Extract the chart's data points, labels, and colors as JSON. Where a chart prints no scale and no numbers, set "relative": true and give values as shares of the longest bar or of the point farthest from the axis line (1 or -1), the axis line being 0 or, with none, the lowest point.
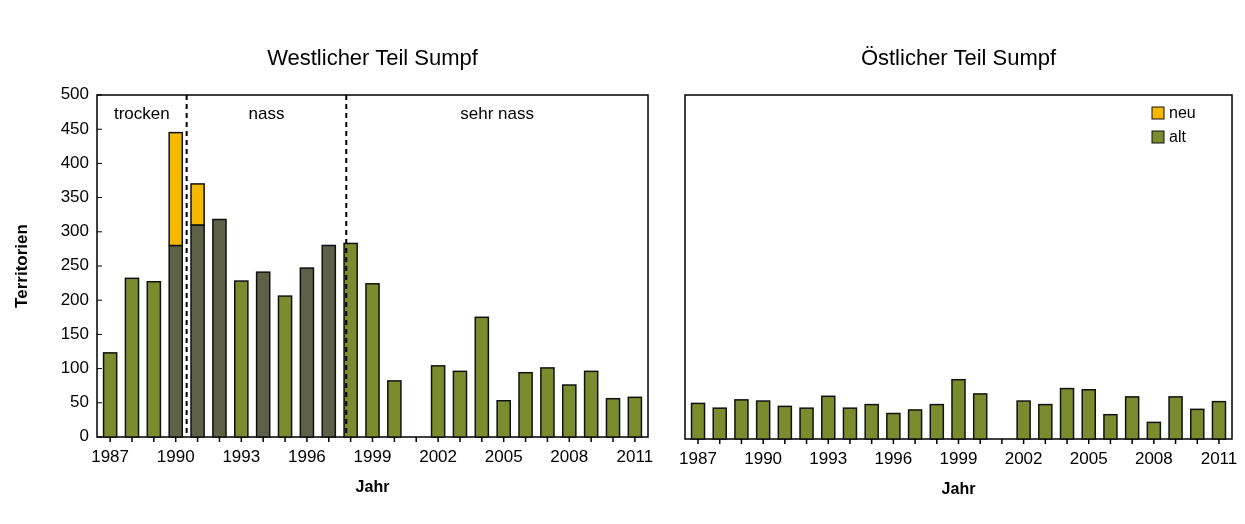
{
  "chart_data": [
    {
      "type": "bar",
      "title": "Westlicher Teil Sumpf",
      "xlabel": "Jahr",
      "ylabel": "Territorien",
      "stacked": true,
      "x": [
        1987,
        1988,
        1989,
        1990,
        1991,
        1992,
        1993,
        1994,
        1995,
        1996,
        1997,
        1998,
        1999,
        2000,
        2001,
        2002,
        2003,
        2004,
        2005,
        2006,
        2007,
        2008,
        2009,
        2010,
        2011
      ],
      "series": [
        {
          "colors": [
            "#7a8c2e",
            "#7a8c2e",
            "#7a8c2e",
            "#5e6048",
            "#5e6048",
            "#5e6048",
            "#7a8c2e",
            "#5e6048",
            "#7a8c2e",
            "#5e6048",
            "#5e6048",
            "#7a8c2e",
            "#7a8c2e",
            "#7a8c2e",
            null,
            "#7a8c2e",
            "#7a8c2e",
            "#7a8c2e",
            "#7a8c2e",
            "#7a8c2e",
            "#7a8c2e",
            "#7a8c2e",
            "#7a8c2e",
            "#7a8c2e",
            "#7a8c2e"
          ],
          "values": [
            123,
            232,
            227,
            280,
            310,
            318,
            228,
            241,
            206,
            247,
            280,
            283,
            224,
            82,
            null,
            104,
            96,
            175,
            53,
            94,
            101,
            76,
            96,
            56,
            58
          ]
        },
        {
          "color": "#f5b800",
          "values": [
            null,
            null,
            null,
            165,
            60,
            null,
            null,
            null,
            null,
            null,
            null,
            null,
            null,
            null,
            null,
            null,
            null,
            null,
            null,
            null,
            null,
            null,
            null,
            null,
            null
          ]
        }
      ],
      "xlim": [
        1986.4,
        2011.6
      ],
      "xticks": [
        1987,
        {
          "value": 1988,
          "label": null
        },
        {
          "value": 1989,
          "label": null
        },
        1990,
        {
          "value": 1991,
          "label": null
        },
        {
          "value": 1992,
          "label": null
        },
        1993,
        {
          "value": 1994,
          "label": null
        },
        {
          "value": 1995,
          "label": null
        },
        1996,
        {
          "value": 1997,
          "label": null
        },
        {
          "value": 1998,
          "label": null
        },
        1999,
        {
          "value": 2000,
          "label": null
        },
        {
          "value": 2001,
          "label": null
        },
        2002,
        {
          "value": 2003,
          "label": null
        },
        {
          "value": 2004,
          "label": null
        },
        2005,
        {
          "value": 2006,
          "label": null
        },
        {
          "value": 2007,
          "label": null
        },
        2008,
        {
          "value": 2009,
          "label": null
        },
        {
          "value": 2010,
          "label": null
        },
        2011
      ],
      "ylim": [
        0,
        500
      ],
      "yticks": [
        0,
        50,
        100,
        150,
        200,
        250,
        300,
        350,
        400,
        450,
        500
      ],
      "ref_lines": [
        {
          "axis": "x",
          "value": 1990.5,
          "line_style": "dashed",
          "color": "#000000"
        },
        {
          "axis": "x",
          "value": 1997.8,
          "line_style": "dashed",
          "color": "#000000"
        }
      ],
      "annotations": [
        "trocken",
        "nass",
        "sehr nass"
      ],
      "legend": false
    },
    {
      "type": "bar",
      "title": "Östlicher Teil Sumpf",
      "xlabel": "Jahr",
      "x": [
        1987,
        1988,
        1989,
        1990,
        1991,
        1992,
        1993,
        1994,
        1995,
        1996,
        1997,
        1998,
        1999,
        2000,
        2001,
        2002,
        2003,
        2004,
        2005,
        2006,
        2007,
        2008,
        2009,
        2010,
        2011
      ],
      "series": [
        {
          "name": "alt",
          "color": "#7a8c2e",
          "values": [
            0.6,
            0.52,
            0.66,
            0.64,
            0.55,
            0.52,
            0.72,
            0.52,
            0.58,
            0.43,
            0.49,
            0.58,
            1,
            0.76,
            null,
            0.64,
            0.58,
            0.85,
            0.83,
            0.41,
            0.71,
            0.28,
            0.71,
            0.5,
            0.63
          ]
        },
        {
          "name": "neu",
          "color": "#f5b800",
          "values": [
            0,
            0,
            0,
            0,
            0,
            0,
            0,
            0,
            0,
            0,
            0,
            0,
            0,
            0,
            null,
            0,
            0,
            0,
            0,
            0,
            0,
            0,
            0,
            0,
            0
          ]
        }
      ],
      "xlim": [
        1986.4,
        2011.6
      ],
      "xticks": [
        1987,
        {
          "value": 1988,
          "label": null
        },
        {
          "value": 1989,
          "label": null
        },
        1990,
        {
          "value": 1991,
          "label": null
        },
        {
          "value": 1992,
          "label": null
        },
        1993,
        {
          "value": 1994,
          "label": null
        },
        {
          "value": 1995,
          "label": null
        },
        1996,
        {
          "value": 1997,
          "label": null
        },
        {
          "value": 1998,
          "label": null
        },
        1999,
        {
          "value": 2000,
          "label": null
        },
        {
          "value": 2001,
          "label": null
        },
        2002,
        {
          "value": 2003,
          "label": null
        },
        {
          "value": 2004,
          "label": null
        },
        2005,
        {
          "value": 2006,
          "label": null
        },
        {
          "value": 2007,
          "label": null
        },
        2008,
        {
          "value": 2009,
          "label": null
        },
        {
          "value": 2010,
          "label": null
        },
        2011
      ],
      "relative": true,
      "legend": "top right"
    }
  ]
}
